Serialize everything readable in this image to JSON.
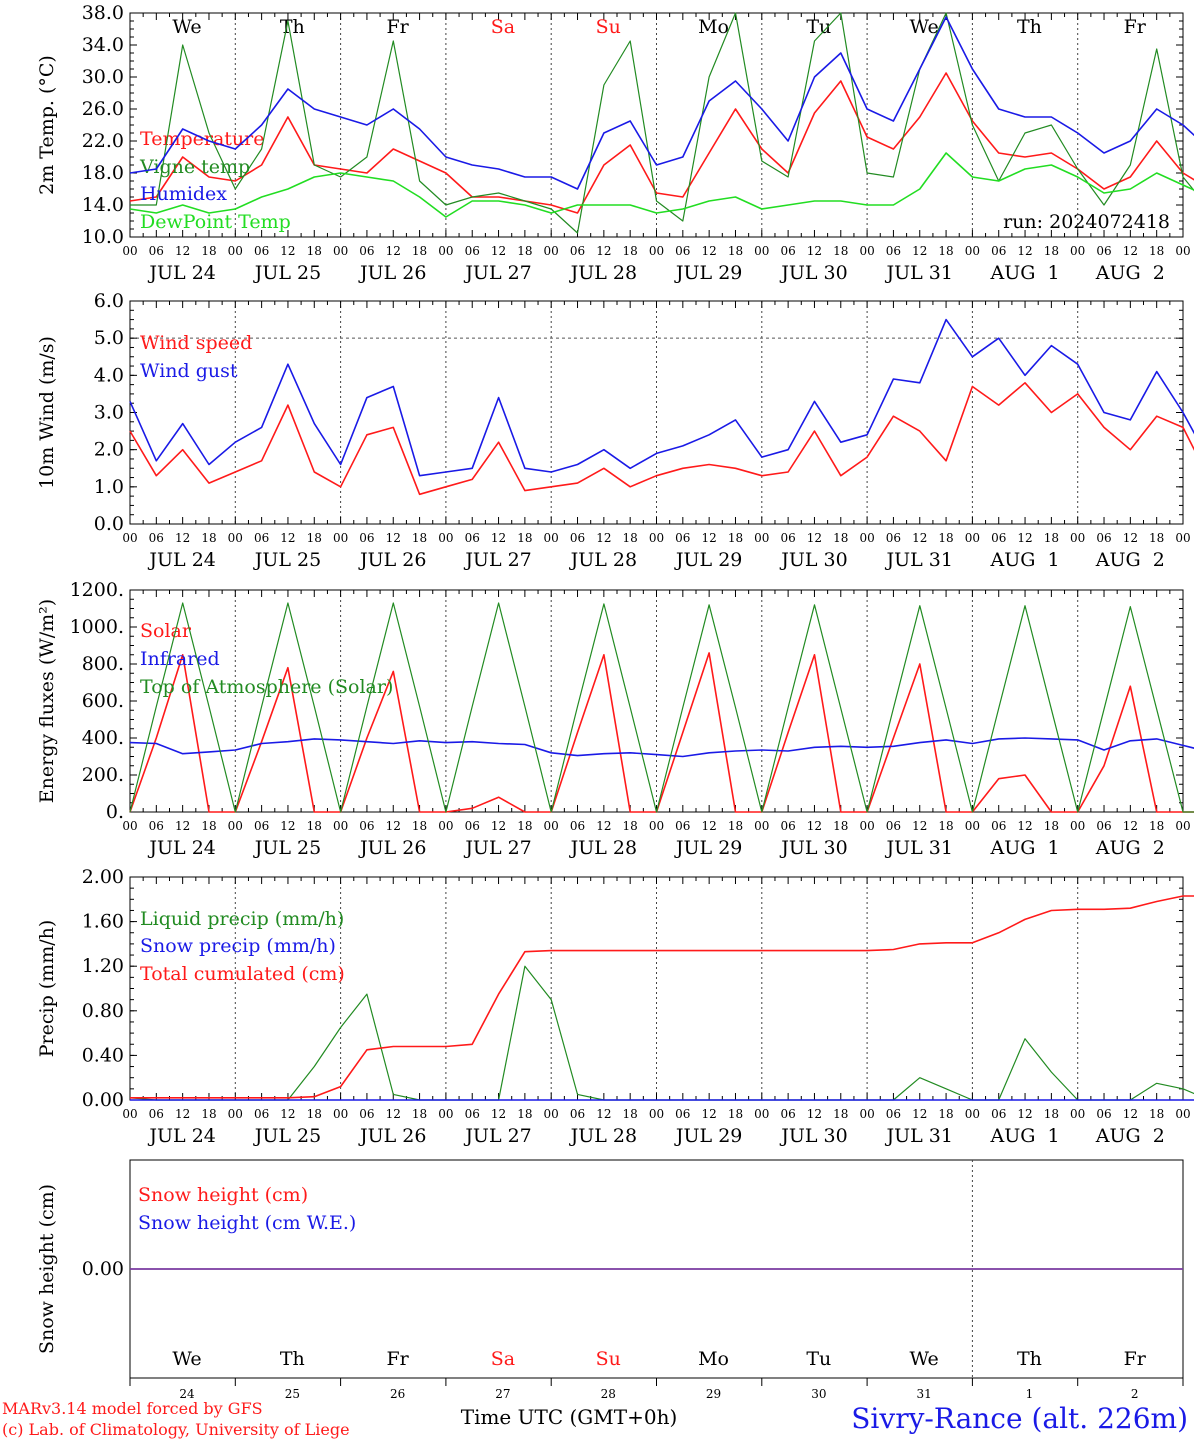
{
  "colors": {
    "red": "#ff1a1a",
    "green": "#228b22",
    "blue": "#1a1ae6",
    "lightgreen": "#22dd22",
    "purple": "#7a3aa0",
    "black": "#000000"
  },
  "days": {
    "names": [
      "We",
      "Th",
      "Fr",
      "Sa",
      "Su",
      "Mo",
      "Tu",
      "We",
      "Th",
      "Fr"
    ],
    "weekend": [
      false,
      false,
      false,
      true,
      true,
      false,
      false,
      false,
      false,
      false
    ],
    "dates": [
      "JUL 24",
      "JUL 25",
      "JUL 26",
      "JUL 27",
      "JUL 28",
      "JUL 29",
      "JUL 30",
      "JUL 31",
      "AUG  1",
      "AUG  2"
    ],
    "numbers": [
      "24",
      "25",
      "26",
      "27",
      "28",
      "29",
      "30",
      "31",
      "1",
      "2"
    ],
    "hour_labels": [
      "00",
      "06",
      "12",
      "18"
    ],
    "final_hour": "00"
  },
  "footer": {
    "model": "MARv3.14 model forced by GFS",
    "lab": "(c) Lab. of Climatology, University of Liege",
    "time_label": "Time UTC (GMT+0h)",
    "station": "Sivry-Rance (alt. 226m)"
  },
  "chart_data": [
    {
      "type": "line",
      "ylabel": "2m Temp. (°C)",
      "ylim": [
        10,
        38
      ],
      "ytick_labels": [
        "10.0",
        "14.0",
        "18.0",
        "22.0",
        "26.0",
        "30.0",
        "34.0",
        "38.0"
      ],
      "annotation": "run: 2024072418",
      "grid": "vertical dotted at day boundaries",
      "x_unit": "hours since JUL 24 00 UTC, step 6h",
      "series": [
        {
          "name": "Temperature",
          "color": "red",
          "values": [
            14.5,
            15.0,
            20.0,
            17.5,
            17.0,
            19.0,
            25.0,
            19.0,
            18.5,
            18.0,
            21.0,
            19.5,
            18.0,
            15.0,
            15.0,
            14.5,
            14.0,
            13.0,
            19.0,
            21.5,
            15.5,
            15.0,
            20.5,
            26.0,
            21.0,
            18.0,
            25.5,
            29.5,
            22.5,
            21.0,
            25.0,
            30.5,
            24.5,
            20.5,
            20.0,
            20.5,
            18.5,
            16.0,
            17.5,
            22.0,
            18.0,
            16.0
          ]
        },
        {
          "name": "Vigne temp",
          "color": "green",
          "values": [
            14.0,
            14.0,
            34.0,
            23.0,
            16.0,
            21.0,
            37.0,
            19.0,
            17.5,
            20.0,
            34.5,
            17.0,
            14.0,
            15.0,
            15.5,
            14.5,
            13.5,
            10.5,
            29.0,
            34.5,
            14.5,
            12.0,
            30.0,
            38.0,
            19.5,
            17.5,
            34.5,
            38.0,
            18.0,
            17.5,
            31.0,
            38.0,
            24.0,
            17.0,
            23.0,
            24.0,
            18.5,
            14.0,
            19.0,
            33.5,
            17.5,
            13.5
          ]
        },
        {
          "name": "Humidex",
          "color": "blue",
          "values": [
            18.0,
            18.5,
            23.5,
            22.0,
            21.0,
            24.0,
            28.5,
            26.0,
            25.0,
            24.0,
            26.0,
            23.5,
            20.0,
            19.0,
            18.5,
            17.5,
            17.5,
            16.0,
            23.0,
            24.5,
            19.0,
            20.0,
            27.0,
            29.5,
            26.0,
            22.0,
            30.0,
            33.0,
            26.0,
            24.5,
            31.0,
            37.5,
            31.0,
            26.0,
            25.0,
            25.0,
            23.0,
            20.5,
            22.0,
            26.0,
            24.0,
            21.0
          ]
        },
        {
          "name": "DewPoint Temp",
          "color": "lightgreen",
          "values": [
            13.5,
            13.0,
            14.0,
            13.0,
            13.5,
            15.0,
            16.0,
            17.5,
            18.0,
            17.5,
            17.0,
            15.0,
            12.5,
            14.5,
            14.5,
            14.0,
            13.0,
            14.0,
            14.0,
            14.0,
            13.0,
            13.5,
            14.5,
            15.0,
            13.5,
            14.0,
            14.5,
            14.5,
            14.0,
            14.0,
            16.0,
            20.5,
            17.5,
            17.0,
            18.5,
            19.0,
            17.5,
            15.5,
            16.0,
            18.0,
            16.5,
            15.0
          ]
        }
      ]
    },
    {
      "type": "line",
      "ylabel": "10m Wind (m/s)",
      "ylim": [
        0,
        6
      ],
      "ytick_labels": [
        "0.0",
        "1.0",
        "2.0",
        "3.0",
        "4.0",
        "5.0",
        "6.0"
      ],
      "grid": "horizontal dashed at 5.0; vertical dotted at day boundaries",
      "x_unit": "hours since JUL 24 00 UTC, step 6h",
      "series": [
        {
          "name": "Wind speed",
          "color": "red",
          "values": [
            2.5,
            1.3,
            2.0,
            1.1,
            1.4,
            1.7,
            3.2,
            1.4,
            1.0,
            2.4,
            2.6,
            0.8,
            1.0,
            1.2,
            2.2,
            0.9,
            1.0,
            1.1,
            1.5,
            1.0,
            1.3,
            1.5,
            1.6,
            1.5,
            1.3,
            1.4,
            2.5,
            1.3,
            1.8,
            2.9,
            2.5,
            1.7,
            3.7,
            3.2,
            3.8,
            3.0,
            3.5,
            2.6,
            2.0,
            2.9,
            2.6,
            1.2
          ]
        },
        {
          "name": "Wind gust",
          "color": "blue",
          "values": [
            3.3,
            1.7,
            2.7,
            1.6,
            2.2,
            2.6,
            4.3,
            2.7,
            1.6,
            3.4,
            3.7,
            1.3,
            1.4,
            1.5,
            3.4,
            1.5,
            1.4,
            1.6,
            2.0,
            1.5,
            1.9,
            2.1,
            2.4,
            2.8,
            1.8,
            2.0,
            3.3,
            2.2,
            2.4,
            3.9,
            3.8,
            5.5,
            4.5,
            5.0,
            4.0,
            4.8,
            4.3,
            3.0,
            2.8,
            4.1,
            3.0,
            1.7
          ]
        }
      ]
    },
    {
      "type": "line",
      "ylabel": "Energy fluxes (W/m²)",
      "ylim": [
        0,
        1200
      ],
      "ytick_labels": [
        "0.",
        "200.",
        "400.",
        "600.",
        "800.",
        "1000.",
        "1200."
      ],
      "grid": "vertical dotted at day boundaries",
      "x_unit": "hours since JUL 24 00 UTC, step 6h",
      "series": [
        {
          "name": "Solar",
          "color": "red",
          "values": [
            0,
            400,
            850,
            0,
            0,
            380,
            780,
            0,
            0,
            400,
            760,
            0,
            0,
            20,
            80,
            0,
            0,
            430,
            850,
            0,
            0,
            430,
            860,
            0,
            0,
            430,
            850,
            0,
            0,
            400,
            800,
            0,
            0,
            180,
            200,
            0,
            0,
            250,
            680,
            0,
            0,
            0
          ]
        },
        {
          "name": "Infrared",
          "color": "blue",
          "values": [
            375,
            370,
            315,
            325,
            335,
            370,
            380,
            395,
            390,
            380,
            370,
            385,
            375,
            380,
            370,
            365,
            320,
            305,
            315,
            320,
            310,
            300,
            320,
            330,
            335,
            330,
            350,
            355,
            350,
            355,
            375,
            390,
            370,
            395,
            400,
            395,
            390,
            335,
            385,
            395,
            360,
            325
          ]
        },
        {
          "name": "Top of Atmosphere (Solar)",
          "color": "green",
          "values": [
            0,
            570,
            1130,
            570,
            0,
            570,
            1130,
            570,
            0,
            570,
            1130,
            570,
            0,
            570,
            1130,
            570,
            0,
            570,
            1125,
            565,
            0,
            565,
            1120,
            565,
            0,
            565,
            1120,
            560,
            0,
            560,
            1115,
            560,
            0,
            560,
            1115,
            555,
            0,
            555,
            1110,
            555,
            0,
            0
          ]
        }
      ]
    },
    {
      "type": "line",
      "ylabel": "Precip (mm/h)",
      "ylim": [
        0,
        2
      ],
      "ytick_labels": [
        "0.00",
        "0.40",
        "0.80",
        "1.20",
        "1.60",
        "2.00"
      ],
      "grid": "vertical dotted at day boundaries",
      "x_unit": "hours since JUL 24 00 UTC, step 6h",
      "series": [
        {
          "name": "Liquid precip (mm/h)",
          "color": "green",
          "values": [
            0.02,
            0.0,
            0.0,
            0.0,
            0.0,
            0.0,
            0.0,
            0.3,
            0.65,
            0.95,
            0.05,
            0.0,
            0.0,
            0.0,
            0.0,
            1.2,
            0.9,
            0.05,
            0.0,
            0.0,
            0.0,
            0.0,
            0.0,
            0.0,
            0.0,
            0.0,
            0.0,
            0.0,
            0.0,
            0.0,
            0.2,
            0.1,
            0.0,
            0.0,
            0.55,
            0.25,
            0.0,
            0.0,
            0.0,
            0.15,
            0.1,
            0.0
          ]
        },
        {
          "name": "Snow precip (mm/h)",
          "color": "blue",
          "values": [
            0,
            0,
            0,
            0,
            0,
            0,
            0,
            0,
            0,
            0,
            0,
            0,
            0,
            0,
            0,
            0,
            0,
            0,
            0,
            0,
            0,
            0,
            0,
            0,
            0,
            0,
            0,
            0,
            0,
            0,
            0,
            0,
            0,
            0,
            0,
            0,
            0,
            0,
            0,
            0,
            0,
            0
          ]
        },
        {
          "name": "Total cumulated (cm)",
          "color": "red",
          "values": [
            0.02,
            0.02,
            0.02,
            0.02,
            0.02,
            0.02,
            0.02,
            0.03,
            0.12,
            0.45,
            0.48,
            0.48,
            0.48,
            0.5,
            0.95,
            1.33,
            1.34,
            1.34,
            1.34,
            1.34,
            1.34,
            1.34,
            1.34,
            1.34,
            1.34,
            1.34,
            1.34,
            1.34,
            1.34,
            1.35,
            1.4,
            1.41,
            1.41,
            1.5,
            1.62,
            1.7,
            1.71,
            1.71,
            1.72,
            1.78,
            1.83,
            1.83
          ]
        }
      ]
    },
    {
      "type": "line",
      "ylabel": "Snow height (cm)",
      "ylim": [
        -0.5,
        0.5
      ],
      "ytick_labels": [
        "0.00"
      ],
      "grid": "vertical dotted at JUL 31/AUG 1 boundary",
      "x_unit": "hours since JUL 24 00 UTC, step 6h",
      "series": [
        {
          "name": "Snow height (cm)",
          "color": "red",
          "values": [
            0,
            0
          ]
        },
        {
          "name": "Snow height (cm W.E.)",
          "color": "blue",
          "values": [
            0,
            0
          ]
        }
      ]
    }
  ]
}
